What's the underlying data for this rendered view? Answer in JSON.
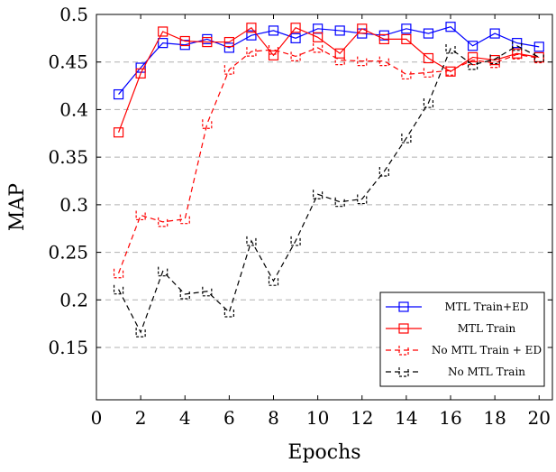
{
  "chart_data": {
    "type": "line",
    "xlabel": "Epochs",
    "ylabel": "MAP",
    "xlim": [
      0,
      20.6
    ],
    "ylim": [
      0.095,
      0.5
    ],
    "xticks": [
      "0",
      "2",
      "4",
      "6",
      "8",
      "10",
      "12",
      "14",
      "16",
      "18",
      "20"
    ],
    "yticks": [
      "0.15",
      "0.2",
      "0.25",
      "0.3",
      "0.35",
      "0.4",
      "0.45",
      "0.5"
    ],
    "grid": "horizontal dashed",
    "legend_position": "bottom-right",
    "x": [
      1,
      2,
      3,
      4,
      5,
      6,
      7,
      8,
      9,
      10,
      11,
      12,
      13,
      14,
      15,
      16,
      17,
      18,
      19,
      20
    ],
    "series": [
      {
        "name": "MTL Train+ED",
        "color": "#0000ff",
        "line_style": "solid",
        "marker": "square",
        "values": [
          0.416,
          0.444,
          0.47,
          0.468,
          0.474,
          0.465,
          0.478,
          0.483,
          0.475,
          0.485,
          0.483,
          0.48,
          0.478,
          0.485,
          0.48,
          0.487,
          0.467,
          0.48,
          0.47,
          0.466
        ]
      },
      {
        "name": "MTL Train",
        "color": "#ff0000",
        "line_style": "solid",
        "marker": "square",
        "values": [
          0.376,
          0.438,
          0.482,
          0.472,
          0.471,
          0.471,
          0.486,
          0.457,
          0.486,
          0.476,
          0.459,
          0.485,
          0.474,
          0.474,
          0.454,
          0.44,
          0.455,
          0.452,
          0.459,
          0.455
        ]
      },
      {
        "name": "No MTL Train + ED",
        "color": "#ff0000",
        "line_style": "dashed",
        "marker": "u",
        "values": [
          0.228,
          0.289,
          0.282,
          0.285,
          0.385,
          0.442,
          0.461,
          0.463,
          0.456,
          0.465,
          0.452,
          0.451,
          0.451,
          0.437,
          0.439,
          0.441,
          0.452,
          0.449,
          0.458,
          0.454
        ]
      },
      {
        "name": "No MTL Train",
        "color": "#000000",
        "line_style": "dashed",
        "marker": "u",
        "values": [
          0.211,
          0.166,
          0.23,
          0.206,
          0.209,
          0.187,
          0.262,
          0.22,
          0.262,
          0.311,
          0.303,
          0.306,
          0.335,
          0.37,
          0.407,
          0.464,
          0.447,
          0.453,
          0.467,
          0.455
        ]
      }
    ]
  }
}
